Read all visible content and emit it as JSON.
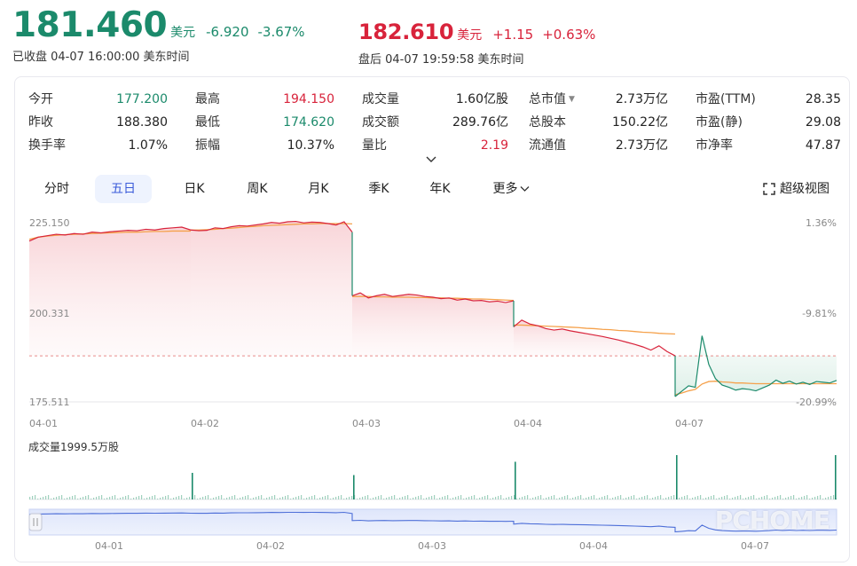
{
  "quote": {
    "price": "181.460",
    "currency": "美元",
    "change": "-6.920",
    "change_pct": "-3.67%",
    "status": "已收盘  04-07 16:00:00  美东时间"
  },
  "after_hours": {
    "price": "182.610",
    "currency": "美元",
    "change": "+1.15",
    "change_pct": "+0.63%",
    "status": "盘后  04-07 19:59:58  美东时间"
  },
  "stats": [
    [
      {
        "label": "今开",
        "value": "177.200",
        "color": "#1b8a6b"
      },
      {
        "label": "最高",
        "value": "194.150",
        "color": "#d8233b"
      },
      {
        "label": "成交量",
        "value": "1.60亿股",
        "color": "#222222"
      },
      {
        "label": "总市值",
        "value": "2.73万亿",
        "color": "#222222",
        "has_menu": true
      },
      {
        "label": "市盈(TTM)",
        "value": "28.35",
        "color": "#222222"
      }
    ],
    [
      {
        "label": "昨收",
        "value": "188.380",
        "color": "#222222"
      },
      {
        "label": "最低",
        "value": "174.620",
        "color": "#1b8a6b"
      },
      {
        "label": "成交额",
        "value": "289.76亿",
        "color": "#222222"
      },
      {
        "label": "总股本",
        "value": "150.22亿",
        "color": "#222222"
      },
      {
        "label": "市盈(静)",
        "value": "29.08",
        "color": "#222222"
      }
    ],
    [
      {
        "label": "换手率",
        "value": "1.07%",
        "color": "#222222"
      },
      {
        "label": "振幅",
        "value": "10.37%",
        "color": "#222222"
      },
      {
        "label": "量比",
        "value": "2.19",
        "color": "#d8233b"
      },
      {
        "label": "流通值",
        "value": "2.73万亿",
        "color": "#222222"
      },
      {
        "label": "市净率",
        "value": "47.87",
        "color": "#222222"
      }
    ]
  ],
  "tabs": [
    "分时",
    "五日",
    "日K",
    "周K",
    "月K",
    "季K",
    "年K",
    "更多"
  ],
  "active_tab": "五日",
  "super_view": "超级视图",
  "icons": {
    "expand": "chevron-down-icon",
    "more": "chevron-down-icon",
    "fullscreen": "fullscreen-icon"
  },
  "colors": {
    "up": "#d8233b",
    "down": "#1b8a6b",
    "avg_line": "#f5a14b",
    "navigator": "#4e6fd8"
  },
  "chart_data": {
    "type": "line",
    "title": "",
    "y_ticks": [
      "225.150",
      "200.331",
      "175.511"
    ],
    "right_ticks": [
      "1.36%",
      "-9.81%",
      "-20.99%"
    ],
    "ylim": [
      175.511,
      225.15
    ],
    "prev_close": 188.38,
    "x_labels": [
      "04-01",
      "04-02",
      "04-03",
      "04-04",
      "04-07"
    ],
    "series": [
      {
        "day": "04-01",
        "price": [
          220.5,
          221.6,
          222.0,
          222.4,
          222.2,
          222.6,
          222.4,
          223.0,
          222.8,
          223.1,
          223.3,
          223.5,
          223.4,
          223.8,
          223.6,
          224.0,
          224.2,
          224.4,
          223.6
        ],
        "avg": [
          221.0,
          221.6,
          221.9,
          222.1,
          222.3,
          222.4,
          222.5,
          222.6,
          222.7,
          222.8,
          222.9,
          223.0,
          223.0,
          223.1,
          223.2,
          223.2,
          223.3,
          223.3,
          223.3
        ]
      },
      {
        "day": "04-02",
        "price": [
          223.6,
          223.4,
          223.5,
          224.2,
          224.0,
          224.5,
          224.8,
          224.7,
          225.0,
          225.3,
          225.7,
          225.5,
          225.9,
          226.0,
          225.6,
          225.8,
          225.7,
          225.4,
          225.0,
          225.9,
          223.0
        ],
        "avg": [
          223.6,
          223.6,
          223.7,
          223.8,
          224.0,
          224.1,
          224.3,
          224.5,
          224.6,
          224.8,
          224.9,
          225.0,
          225.1,
          225.2,
          225.3,
          225.3,
          225.4,
          225.4,
          225.4,
          225.4,
          225.3
        ]
      },
      {
        "day": "04-03",
        "price": [
          205.2,
          206.0,
          204.6,
          205.2,
          205.6,
          205.0,
          205.3,
          205.6,
          205.4,
          205.0,
          204.8,
          204.4,
          204.6,
          204.0,
          204.3,
          203.8,
          203.9,
          203.5,
          203.7,
          203.3,
          203.8
        ],
        "avg": [
          205.0,
          205.0,
          205.0,
          204.9,
          204.9,
          204.8,
          204.8,
          204.8,
          204.7,
          204.7,
          204.6,
          204.6,
          204.5,
          204.5,
          204.4,
          204.3,
          204.3,
          204.2,
          204.1,
          204.0,
          203.9
        ]
      },
      {
        "day": "04-04",
        "price": [
          196.5,
          198.4,
          197.3,
          196.8,
          196.0,
          195.6,
          195.9,
          195.4,
          195.0,
          194.6,
          194.2,
          193.8,
          193.3,
          192.8,
          192.2,
          191.6,
          190.9,
          190.0,
          191.2,
          189.6,
          188.4
        ],
        "avg": [
          197.0,
          197.0,
          196.9,
          196.8,
          196.7,
          196.6,
          196.5,
          196.4,
          196.3,
          196.1,
          196.0,
          195.8,
          195.7,
          195.5,
          195.4,
          195.2,
          195.0,
          194.9,
          194.7,
          194.6,
          194.5
        ]
      },
      {
        "day": "04-07",
        "price": [
          177.0,
          178.5,
          180.0,
          179.6,
          194.0,
          186.0,
          182.0,
          180.2,
          179.6,
          178.8,
          179.2,
          179.0,
          178.6,
          179.4,
          180.2,
          181.6,
          180.7,
          181.3,
          180.5,
          181.0,
          180.4,
          181.2,
          181.0,
          180.8,
          181.5
        ],
        "avg": [
          177.5,
          178.0,
          178.6,
          179.0,
          180.5,
          181.2,
          181.3,
          181.1,
          181.0,
          180.8,
          180.8,
          180.7,
          180.6,
          180.6,
          180.6,
          180.6,
          180.6,
          180.6,
          180.6,
          180.6,
          180.6,
          180.6,
          180.6,
          180.6,
          180.6
        ]
      }
    ],
    "volume_label": "成交量1999.5万股",
    "volume_spikes": [
      {
        "day": "04-02",
        "position": "open",
        "relative": 0.6
      },
      {
        "day": "04-03",
        "position": "open",
        "relative": 0.55
      },
      {
        "day": "04-04",
        "position": "open",
        "relative": 0.85
      },
      {
        "day": "04-07",
        "position": "open",
        "relative": 1.0
      },
      {
        "day": "04-07",
        "position": "close",
        "relative": 1.0
      }
    ],
    "navigator_labels": [
      "04-01",
      "04-02",
      "04-03",
      "04-04",
      "04-07"
    ]
  },
  "watermark": "PCHOME"
}
